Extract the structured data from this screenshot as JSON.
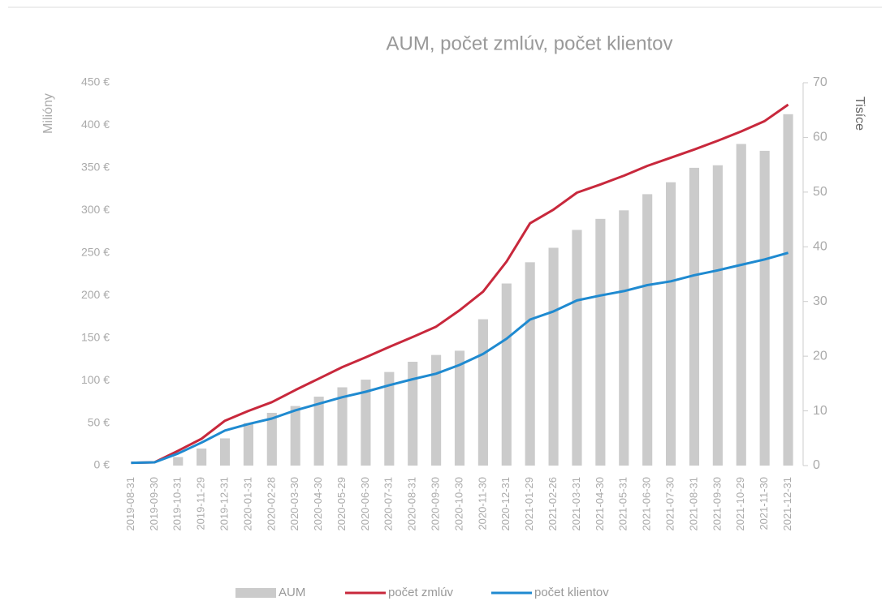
{
  "chart_data": {
    "type": "bar",
    "title": "AUM, počet zmlúv, počet klientov",
    "y_label": "Milióny",
    "y2_label": "Tisíce",
    "categories": [
      "2019-08-31",
      "2019-09-30",
      "2019-10-31",
      "2019-11-29",
      "2019-12-31",
      "2020-01-31",
      "2020-02-28",
      "2020-03-30",
      "2020-04-30",
      "2020-05-29",
      "2020-06-30",
      "2020-07-31",
      "2020-08-31",
      "2020-09-30",
      "2020-10-30",
      "2020-11-30",
      "2020-12-31",
      "2021-01-29",
      "2021-02-26",
      "2021-03-31",
      "2021-04-30",
      "2021-05-31",
      "2021-06-30",
      "2021-07-30",
      "2021-08-31",
      "2021-09-30",
      "2021-10-29",
      "2021-11-30",
      "2021-12-31"
    ],
    "series": [
      {
        "name": "AUM",
        "type": "bar",
        "color": "#cbcbcb",
        "axis": "y",
        "values": [
          0,
          0,
          10,
          20,
          32,
          50,
          62,
          70,
          81,
          92,
          101,
          110,
          122,
          130,
          135,
          172,
          214,
          239,
          256,
          277,
          290,
          300,
          319,
          333,
          350,
          353,
          378,
          370,
          413
        ]
      },
      {
        "name": "počet zmlúv",
        "type": "line",
        "color": "#c8283c",
        "axis": "y2",
        "values": [
          0.5,
          0.6,
          2.7,
          4.9,
          8.2,
          10,
          11.6,
          13.8,
          15.9,
          18,
          19.8,
          21.7,
          23.5,
          25.4,
          28.4,
          31.8,
          37.3,
          44.3,
          46.8,
          49.9,
          51.4,
          53,
          54.8,
          56.3,
          57.8,
          59.4,
          61.1,
          63,
          66
        ]
      },
      {
        "name": "počet klientov",
        "type": "line",
        "color": "#1f8ad0",
        "axis": "y2",
        "values": [
          0.5,
          0.6,
          2.2,
          4.2,
          6.4,
          7.6,
          8.6,
          10.1,
          11.3,
          12.5,
          13.5,
          14.7,
          15.8,
          16.8,
          18.4,
          20.4,
          23.2,
          26.7,
          28.2,
          30.2,
          31.1,
          31.9,
          33,
          33.7,
          34.8,
          35.7,
          36.7,
          37.7,
          38.9
        ]
      }
    ],
    "ylim": [
      0,
      450
    ],
    "yticks": [
      {
        "value": 0,
        "label": "0 €"
      },
      {
        "value": 50,
        "label": "50 €"
      },
      {
        "value": 100,
        "label": "100 €"
      },
      {
        "value": 150,
        "label": "150 €"
      },
      {
        "value": 200,
        "label": "200 €"
      },
      {
        "value": 250,
        "label": "250 €"
      },
      {
        "value": 300,
        "label": "300 €"
      },
      {
        "value": 350,
        "label": "350 €"
      },
      {
        "value": 400,
        "label": "400 €"
      },
      {
        "value": 450,
        "label": "450 €"
      }
    ],
    "y2lim": [
      0,
      70
    ],
    "y2ticks": [
      0,
      10,
      20,
      30,
      40,
      50,
      60,
      70
    ],
    "grid": false,
    "legend": "bottom"
  }
}
